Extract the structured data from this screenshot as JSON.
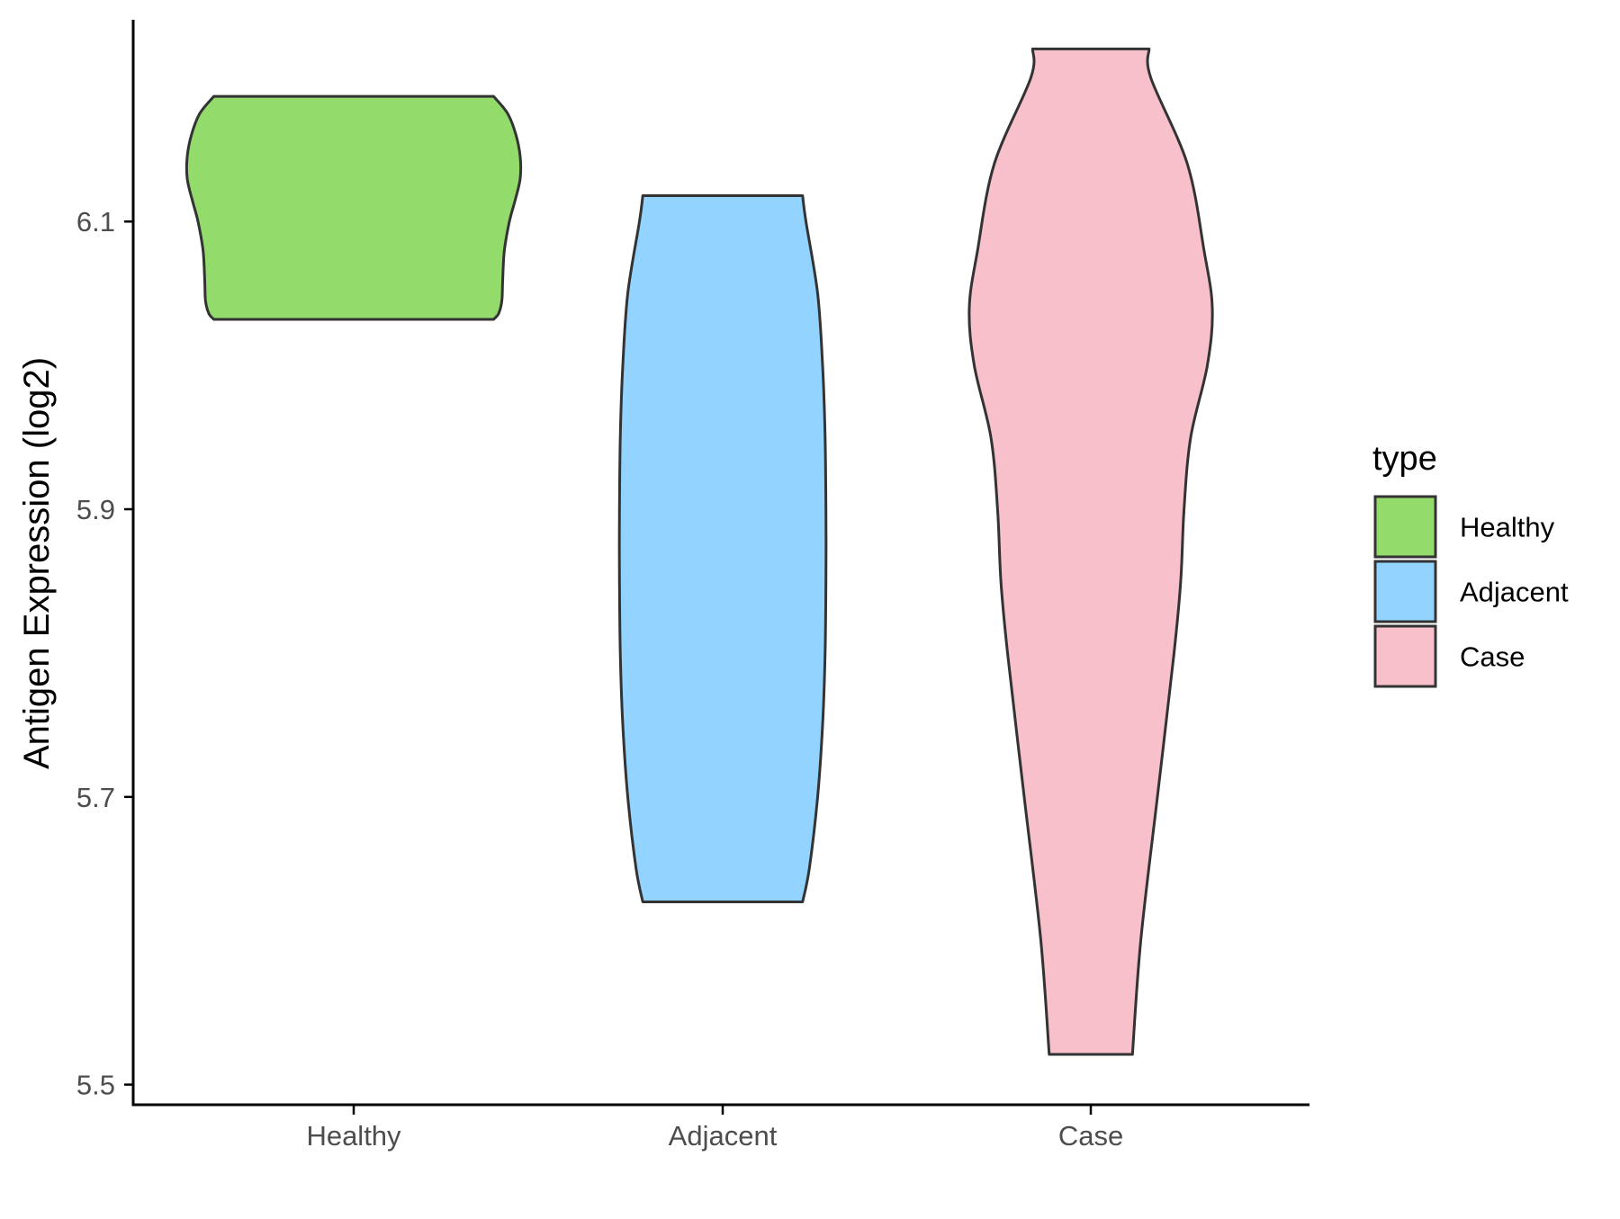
{
  "chart_data": {
    "type": "violin",
    "title": "",
    "xlabel": "",
    "ylabel": "Antigen Expression (log2)",
    "categories": [
      "Healthy",
      "Adjacent",
      "Case"
    ],
    "ylim": [
      5.486,
      6.254
    ],
    "yticks": [
      5.5,
      5.7,
      5.9,
      6.1
    ],
    "grid": false,
    "legend": {
      "title": "type",
      "position": "right",
      "entries": [
        "Healthy",
        "Adjacent",
        "Case"
      ]
    },
    "colors": {
      "Healthy": "#93DB6B",
      "Adjacent": "#93D3FF",
      "Case": "#F7C0CB",
      "outline": "#333333",
      "axis": "#000000"
    },
    "series": [
      {
        "name": "Healthy",
        "min": 6.032,
        "max": 6.187,
        "density_profile": [
          [
            6.032,
            0.84
          ],
          [
            6.036,
            0.87
          ],
          [
            6.045,
            0.89
          ],
          [
            6.06,
            0.895
          ],
          [
            6.08,
            0.905
          ],
          [
            6.1,
            0.935
          ],
          [
            6.115,
            0.97
          ],
          [
            6.13,
            1.0
          ],
          [
            6.145,
            1.0
          ],
          [
            6.16,
            0.975
          ],
          [
            6.175,
            0.925
          ],
          [
            6.187,
            0.84
          ]
        ]
      },
      {
        "name": "Adjacent",
        "min": 5.627,
        "max": 6.118,
        "density_profile": [
          [
            5.627,
            0.48
          ],
          [
            5.65,
            0.52
          ],
          [
            5.7,
            0.57
          ],
          [
            5.75,
            0.6
          ],
          [
            5.8,
            0.615
          ],
          [
            5.85,
            0.62
          ],
          [
            5.9,
            0.62
          ],
          [
            5.95,
            0.615
          ],
          [
            6.0,
            0.6
          ],
          [
            6.05,
            0.57
          ],
          [
            6.1,
            0.5
          ],
          [
            6.118,
            0.48
          ]
        ]
      },
      {
        "name": "Case",
        "min": 5.521,
        "max": 6.22,
        "density_profile": [
          [
            5.521,
            0.25
          ],
          [
            5.6,
            0.3
          ],
          [
            5.7,
            0.4
          ],
          [
            5.8,
            0.5
          ],
          [
            5.85,
            0.54
          ],
          [
            5.9,
            0.56
          ],
          [
            5.95,
            0.6
          ],
          [
            6.0,
            0.7
          ],
          [
            6.04,
            0.73
          ],
          [
            6.08,
            0.68
          ],
          [
            6.14,
            0.58
          ],
          [
            6.2,
            0.36
          ],
          [
            6.22,
            0.35
          ]
        ]
      }
    ]
  }
}
